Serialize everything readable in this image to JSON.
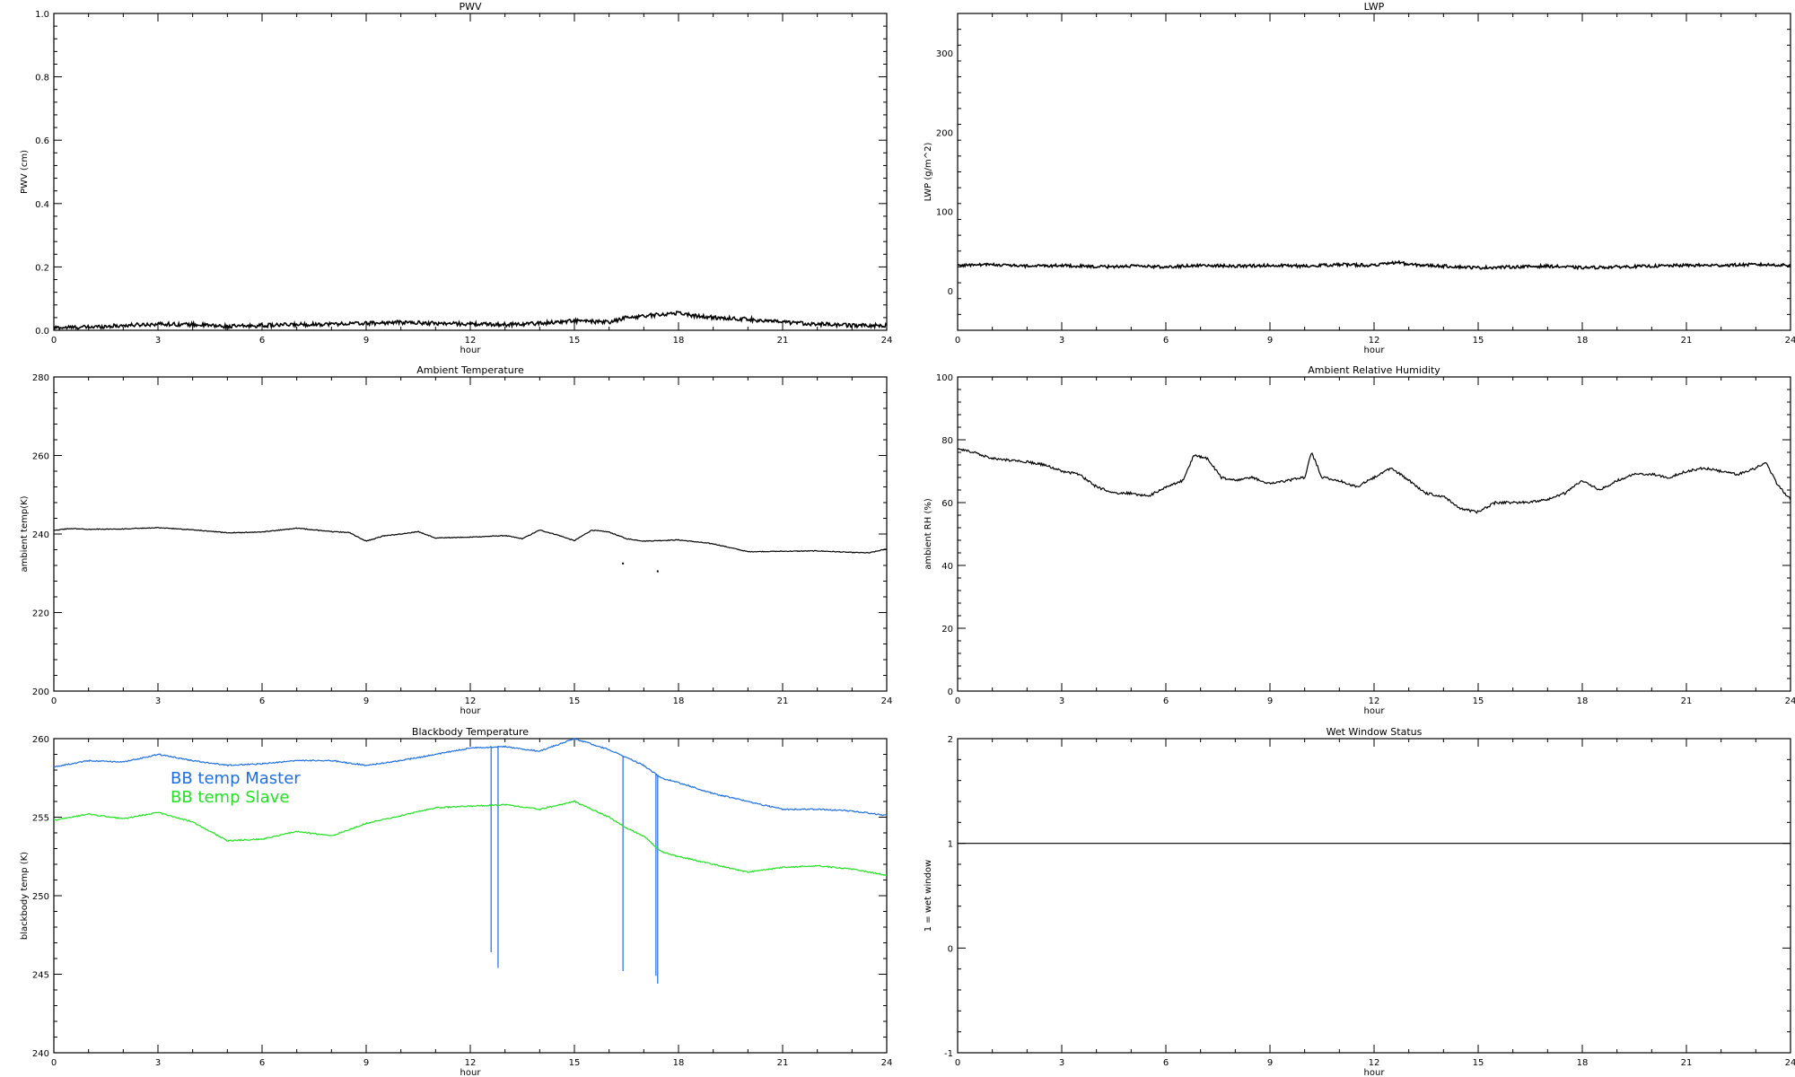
{
  "chart_data": [
    {
      "type": "line",
      "title": "PWV",
      "xlabel": "hour",
      "ylabel": "PWV (cm)",
      "xlim": [
        0,
        24
      ],
      "ylim": [
        0,
        1.0
      ],
      "xticks": [
        0,
        3,
        6,
        9,
        12,
        15,
        18,
        21,
        24
      ],
      "yticks": [
        0.0,
        0.2,
        0.4,
        0.6,
        0.8,
        1.0
      ],
      "ytick_labels": [
        "0.0",
        "0.2",
        "0.4",
        "0.6",
        "0.8",
        "1.0"
      ],
      "series": [
        {
          "color": "#000000",
          "noise": 0.006,
          "x": [
            0,
            1,
            2,
            3,
            4,
            5,
            6,
            7,
            8,
            9,
            10,
            11,
            12,
            13,
            14,
            15,
            16,
            16.5,
            17,
            17.5,
            18,
            18.5,
            19,
            20,
            21,
            22,
            23,
            24
          ],
          "y": [
            0.008,
            0.01,
            0.015,
            0.02,
            0.018,
            0.012,
            0.015,
            0.018,
            0.02,
            0.022,
            0.025,
            0.022,
            0.02,
            0.018,
            0.022,
            0.03,
            0.025,
            0.04,
            0.045,
            0.05,
            0.055,
            0.045,
            0.04,
            0.035,
            0.025,
            0.02,
            0.015,
            0.015
          ]
        }
      ]
    },
    {
      "type": "line",
      "title": "LWP",
      "xlabel": "hour",
      "ylabel": "LWP (g/m^2)",
      "xlim": [
        0,
        24
      ],
      "ylim": [
        -50,
        350
      ],
      "xticks": [
        0,
        3,
        6,
        9,
        12,
        15,
        18,
        21,
        24
      ],
      "yticks": [
        0,
        100,
        200,
        300
      ],
      "ytick_labels": [
        "0",
        "100",
        "200",
        "300"
      ],
      "series": [
        {
          "color": "#000000",
          "noise": 1.8,
          "x": [
            0,
            1,
            2,
            3,
            4,
            5,
            6,
            7,
            8,
            9,
            10,
            11,
            12,
            12.7,
            13,
            14,
            15,
            16,
            17,
            18,
            19,
            20,
            21,
            22,
            23,
            24
          ],
          "y": [
            32,
            33,
            31,
            32,
            30,
            31,
            30,
            32,
            31,
            32,
            31,
            33,
            32,
            36,
            33,
            31,
            29,
            30,
            31,
            29,
            30,
            31,
            32,
            32,
            33,
            32
          ]
        }
      ]
    },
    {
      "type": "line",
      "title": "Ambient Temperature",
      "xlabel": "hour",
      "ylabel": "ambient temp(K)",
      "xlim": [
        0,
        24
      ],
      "ylim": [
        200,
        280
      ],
      "xticks": [
        0,
        3,
        6,
        9,
        12,
        15,
        18,
        21,
        24
      ],
      "yticks": [
        200,
        220,
        240,
        260,
        280
      ],
      "ytick_labels": [
        "200",
        "220",
        "240",
        "260",
        "280"
      ],
      "series": [
        {
          "color": "#000000",
          "noise": 0.1,
          "x": [
            0,
            0.5,
            1,
            2,
            3,
            4,
            5,
            6,
            7,
            8,
            8.5,
            9,
            9.5,
            10,
            10.5,
            11,
            12,
            13,
            13.5,
            14,
            14.5,
            15,
            15.5,
            16,
            16.5,
            17,
            18,
            19,
            20,
            21,
            22,
            23,
            23.5,
            24
          ],
          "y": [
            241.0,
            241.4,
            241.2,
            241.3,
            241.6,
            241.1,
            240.3,
            240.5,
            241.5,
            240.6,
            240.4,
            238.2,
            239.5,
            240.0,
            240.6,
            239.0,
            239.2,
            239.6,
            238.8,
            241.0,
            239.8,
            238.3,
            241.0,
            240.5,
            238.8,
            238.2,
            238.5,
            237.5,
            235.5,
            235.6,
            235.7,
            235.3,
            235.2,
            236.2
          ]
        }
      ],
      "outlier_points": [
        [
          16.4,
          232.5
        ],
        [
          17.4,
          230.5
        ]
      ]
    },
    {
      "type": "line",
      "title": "Ambient Relative Humidity",
      "xlabel": "hour",
      "ylabel": "ambient RH (%)",
      "xlim": [
        0,
        24
      ],
      "ylim": [
        0,
        100
      ],
      "xticks": [
        0,
        3,
        6,
        9,
        12,
        15,
        18,
        21,
        24
      ],
      "yticks": [
        0,
        20,
        40,
        60,
        80,
        100
      ],
      "ytick_labels": [
        "0",
        "20",
        "40",
        "60",
        "80",
        "100"
      ],
      "series": [
        {
          "color": "#000000",
          "noise": 0.4,
          "x": [
            0,
            0.5,
            1,
            2,
            2.5,
            3,
            3.5,
            4,
            4.5,
            5,
            5.5,
            6,
            6.5,
            6.8,
            7.2,
            7.6,
            8,
            8.5,
            9,
            9.5,
            10,
            10.2,
            10.5,
            11,
            11.5,
            12,
            12.5,
            13,
            13.5,
            14,
            14.5,
            15,
            15.5,
            16,
            16.5,
            17,
            17.5,
            18,
            18.5,
            19,
            19.5,
            20,
            20.5,
            21,
            21.5,
            22,
            22.5,
            23,
            23.3,
            23.6,
            24
          ],
          "y": [
            77,
            76,
            74,
            73,
            72,
            70,
            69,
            65,
            63,
            63,
            62,
            65,
            67,
            75,
            74,
            68,
            67,
            68,
            66,
            67,
            68,
            76,
            68,
            67,
            65,
            68,
            71,
            67,
            63,
            62,
            58,
            57,
            60,
            60,
            60,
            61,
            63,
            67,
            64,
            67,
            69,
            69,
            68,
            70,
            71,
            70,
            69,
            71,
            73,
            66,
            61
          ]
        }
      ]
    },
    {
      "type": "line",
      "title": "Blackbody Temperature",
      "xlabel": "hour",
      "ylabel": "blackbody temp (K)",
      "xlim": [
        0,
        24
      ],
      "ylim": [
        240,
        260
      ],
      "xticks": [
        0,
        3,
        6,
        9,
        12,
        15,
        18,
        21,
        24
      ],
      "yticks": [
        240,
        245,
        250,
        255,
        260
      ],
      "ytick_labels": [
        "240",
        "245",
        "250",
        "255",
        "260"
      ],
      "legend": {
        "position": "upper-left"
      },
      "series": [
        {
          "name": "BB temp Master",
          "color": "#1f6fe0",
          "noise": 0.04,
          "x": [
            0,
            1,
            2,
            3,
            4,
            5,
            6,
            7,
            8,
            9,
            10,
            11,
            12,
            13,
            14,
            15,
            16,
            16.5,
            17,
            17.5,
            18,
            19,
            20,
            21,
            22,
            23,
            24
          ],
          "y": [
            258.2,
            258.6,
            258.5,
            259.0,
            258.6,
            258.3,
            258.4,
            258.6,
            258.6,
            258.3,
            258.6,
            259.0,
            259.4,
            259.5,
            259.2,
            260.0,
            259.3,
            258.8,
            258.3,
            257.5,
            257.2,
            256.5,
            256.0,
            255.5,
            255.5,
            255.4,
            255.1
          ],
          "spikes": [
            [
              12.6,
              246.4
            ],
            [
              12.8,
              245.4
            ],
            [
              16.4,
              245.2
            ],
            [
              17.35,
              244.9
            ],
            [
              17.4,
              244.4
            ]
          ]
        },
        {
          "name": "BB temp Slave",
          "color": "#22e022",
          "noise": 0.04,
          "x": [
            0,
            1,
            2,
            3,
            4,
            5,
            6,
            7,
            8,
            9,
            10,
            11,
            12,
            13,
            14,
            15,
            16,
            16.5,
            17,
            17.5,
            18,
            19,
            20,
            21,
            22,
            23,
            24
          ],
          "y": [
            254.8,
            255.2,
            254.9,
            255.3,
            254.7,
            253.5,
            253.6,
            254.1,
            253.8,
            254.6,
            255.1,
            255.6,
            255.7,
            255.8,
            255.5,
            256.0,
            255.0,
            254.3,
            253.8,
            252.8,
            252.5,
            252.0,
            251.5,
            251.8,
            251.9,
            251.7,
            251.3
          ]
        }
      ]
    },
    {
      "type": "line",
      "title": "Wet Window Status",
      "xlabel": "hour",
      "ylabel": "1 = wet window",
      "xlim": [
        0,
        24
      ],
      "ylim": [
        -1,
        2
      ],
      "xticks": [
        0,
        3,
        6,
        9,
        12,
        15,
        18,
        21,
        24
      ],
      "yticks": [
        -1,
        0,
        1,
        2
      ],
      "ytick_labels": [
        "-1",
        "0",
        "1",
        "2"
      ],
      "series": [
        {
          "color": "#000000",
          "noise": 0,
          "x": [
            0,
            24
          ],
          "y": [
            1,
            1
          ]
        }
      ]
    }
  ]
}
